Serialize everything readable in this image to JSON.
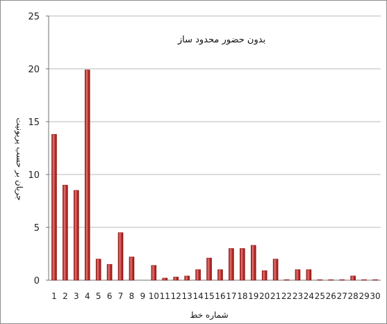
{
  "chart_data": {
    "type": "bar",
    "title": "",
    "annotation": "بدون حضور محدود ساز",
    "xlabel": "شماره خط",
    "ylabel": "جریان بر حسب پریونیت",
    "categories": [
      "1",
      "2",
      "3",
      "4",
      "5",
      "6",
      "7",
      "8",
      "9",
      "10",
      "11",
      "12",
      "13",
      "14",
      "15",
      "16",
      "17",
      "18",
      "19",
      "20",
      "21",
      "22",
      "23",
      "24",
      "25",
      "26",
      "27",
      "28",
      "29",
      "30"
    ],
    "series": [
      {
        "values": [
          13.8,
          9.0,
          8.5,
          19.9,
          2.0,
          1.5,
          4.5,
          2.2,
          0.0,
          1.4,
          0.2,
          0.3,
          0.4,
          1.0,
          2.1,
          1.0,
          3.0,
          3.0,
          3.3,
          0.9,
          2.0,
          0.05,
          1.0,
          1.0,
          0.05,
          0.05,
          0.05,
          0.4,
          0.05,
          0.05
        ]
      }
    ],
    "ylim": [
      0,
      25
    ],
    "yticks": [
      0,
      5,
      10,
      15,
      20,
      25
    ],
    "grid": true,
    "legend": "none",
    "colors": {
      "bar": "#c0302f",
      "bar_light": "#e07a78",
      "bar_dark": "#8a1512",
      "grid": "#b9b9b9",
      "axis": "#707070"
    }
  }
}
